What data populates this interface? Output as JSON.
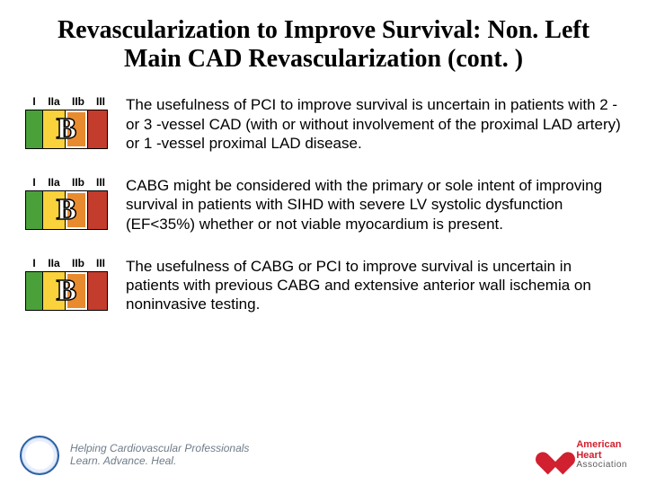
{
  "title": "Revascularization to Improve Survival: Non. Left Main CAD Revascularization (cont. )",
  "header_labels": {
    "i": "I",
    "iia": "IIa",
    "iib": "IIb",
    "iii": "III"
  },
  "colors": {
    "green": "#4aa13a",
    "yellow": "#f9d23c",
    "orange": "#e88b2f",
    "red": "#c43c2c",
    "bg": "#ffffff",
    "text": "#000000"
  },
  "rows": [
    {
      "letter": "B",
      "hl": 2,
      "text": "The usefulness of PCI to improve survival is uncertain in patients with 2 - or 3 -vessel CAD (with or without involvement of the proximal LAD artery) or 1 -vessel proximal LAD disease."
    },
    {
      "letter": "B",
      "hl": 2,
      "text": "CABG might be considered with the primary or sole intent of improving survival in patients with SIHD with severe LV systolic dysfunction (EF<35%) whether or not viable myocardium is present."
    },
    {
      "letter": "B",
      "hl": 2,
      "text": "The usefulness of CABG or PCI to improve survival is uncertain in patients with previous CABG and extensive anterior wall ischemia on noninvasive testing."
    }
  ],
  "footer": {
    "acc_line1": "Helping Cardiovascular Professionals",
    "acc_line2": "Learn. Advance. Heal.",
    "aha_l1": "American",
    "aha_l2": "Heart",
    "aha_l3": "Association"
  }
}
